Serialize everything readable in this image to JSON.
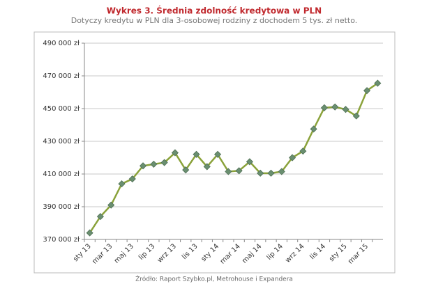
{
  "chart_data": {
    "type": "line",
    "title": "Wykres 3. Średnia zdolność kredytowa w PLN",
    "subtitle": "Dotyczy kredytu w PLN dla 3-osobowej rodziny z dochodem 5 tys. zł netto.",
    "source": "Źródło: Raport Szybko.pl, Metrohouse i Expandera",
    "categories": [
      "sty 13",
      null,
      "mar 13",
      null,
      "maj 13",
      null,
      "lip 13",
      null,
      "wrz 13",
      null,
      "lis 13",
      null,
      "sty 14",
      null,
      "mar 14",
      null,
      "maj 14",
      null,
      "lip 14",
      null,
      "wrz 14",
      null,
      "lis 14",
      null,
      "sty 15",
      null,
      "mar 15",
      null
    ],
    "values": [
      374000,
      384000,
      391000,
      404000,
      407000,
      415000,
      416000,
      417000,
      423000,
      412500,
      422000,
      414500,
      422000,
      411500,
      412000,
      417500,
      410500,
      410500,
      411500,
      420000,
      424000,
      437500,
      450500,
      451000,
      449500,
      445500,
      461000,
      465500
    ],
    "color": "#8aa23a",
    "marker_color": "#6a8f70",
    "ylim": [
      370000,
      490000
    ],
    "yticks": [
      {
        "value": 370000,
        "label": "370 000 zł"
      },
      {
        "value": 390000,
        "label": "390 000 zł"
      },
      {
        "value": 410000,
        "label": "410 000 zł"
      },
      {
        "value": 430000,
        "label": "430 000 zł"
      },
      {
        "value": 450000,
        "label": "450 000 zł"
      },
      {
        "value": 470000,
        "label": "470 000 zł"
      },
      {
        "value": 490000,
        "label": "490 000 zł"
      }
    ],
    "grid": true
  }
}
